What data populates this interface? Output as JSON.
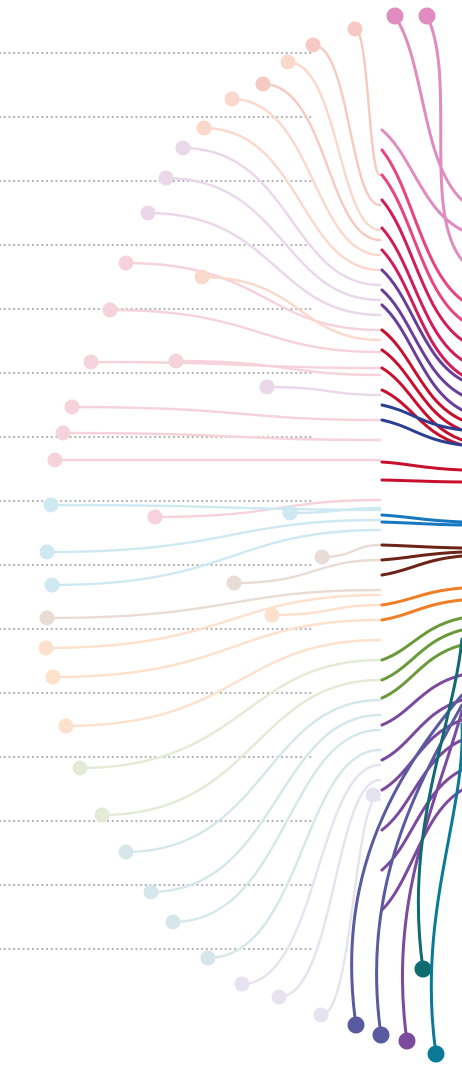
{
  "illustration": {
    "guide_line_count": 15,
    "guide_color": "#b4b4b4",
    "focus_colors": [
      "#e08cc0",
      "#e8457f",
      "#d01c5a",
      "#6a3d9a",
      "#2b3f93",
      "#c8102e",
      "#1778c0",
      "#6b2417",
      "#f07e26",
      "#6a9a3a",
      "#7b4a9e",
      "#0f6b70",
      "#0a7a98",
      "#5a5aa0"
    ],
    "faded_colors": [
      "#f6c9c2",
      "#fad9cc",
      "#ead7ea",
      "#e7d9ea",
      "#f6d2dc",
      "#cfe9f3",
      "#e9dcd6",
      "#fde1cc",
      "#e5ead6",
      "#d5e7ea",
      "#e6e2ef"
    ]
  }
}
